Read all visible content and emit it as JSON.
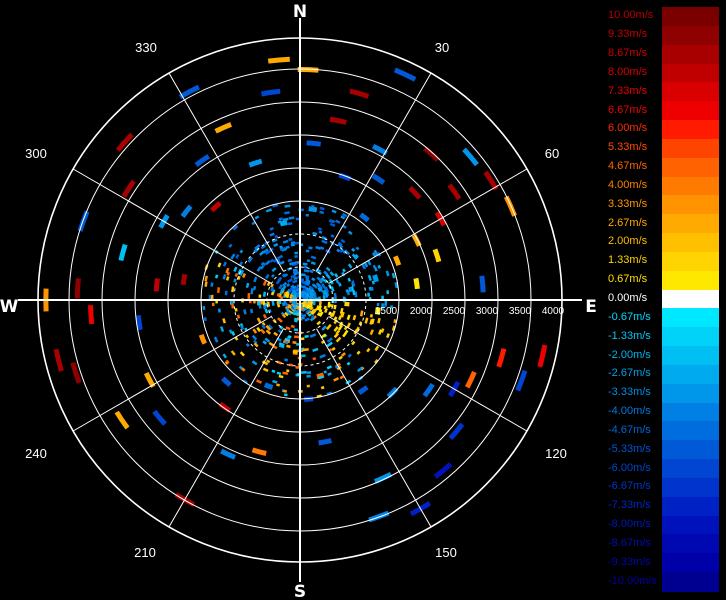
{
  "chart_data": {
    "type": "polar-velocity-display",
    "compass": {
      "north": "N",
      "east": "E",
      "south": "S",
      "west": "W"
    },
    "azimuth_labels": [
      "30",
      "60",
      "120",
      "150",
      "210",
      "240",
      "300",
      "330"
    ],
    "range_labels": [
      "1500",
      "2000",
      "2500",
      "3000",
      "3500",
      "4000"
    ],
    "colorbar": {
      "labels": [
        "10.00m/s",
        "9.33m/s",
        "8.67m/s",
        "8.00m/s",
        "7.33m/s",
        "6.67m/s",
        "6.00m/s",
        "5.33m/s",
        "4.67m/s",
        "4.00m/s",
        "3.33m/s",
        "2.67m/s",
        "2.00m/s",
        "1.33m/s",
        "0.67m/s",
        "0.00m/s",
        "-0.67m/s",
        "-1.33m/s",
        "-2.00m/s",
        "-2.67m/s",
        "-3.33m/s",
        "-4.00m/s",
        "-4.67m/s",
        "-5.33m/s",
        "-6.00m/s",
        "-6.67m/s",
        "-7.33m/s",
        "-8.00m/s",
        "-8.67m/s",
        "-9.33m/s",
        "-10.00m/s"
      ],
      "colors": [
        "#7a0000",
        "#8f0000",
        "#a80000",
        "#c00000",
        "#d80000",
        "#ee0000",
        "#ff1a00",
        "#ff4400",
        "#ff6200",
        "#ff7a00",
        "#ff9400",
        "#ffaa00",
        "#ffc000",
        "#ffd400",
        "#ffe800",
        "#ffffff",
        "#00e8ff",
        "#00d2f8",
        "#00bff2",
        "#00aaee",
        "#0096ea",
        "#0080e4",
        "#006ddf",
        "#005ad8",
        "#0046d2",
        "#0034cc",
        "#0022c4",
        "#0012bc",
        "#0008b2",
        "#0000a8",
        "#000090"
      ],
      "text_colors": [
        "#b40000",
        "#c00000",
        "#cc0000",
        "#d80000",
        "#e40000",
        "#f00000",
        "#ff2a00",
        "#ff4c00",
        "#ff6600",
        "#ff8000",
        "#ff9800",
        "#ffaa00",
        "#ffbe00",
        "#ffd200",
        "#ffe000",
        "#ffffff",
        "#00d8ff",
        "#00c8f5",
        "#00b4ee",
        "#00a0ea",
        "#008ce6",
        "#0078e0",
        "#0066da",
        "#0054d4",
        "#0044ce",
        "#0034c8",
        "#0026c0",
        "#0018b8",
        "#000eb0",
        "#0008a8",
        "#0000a0"
      ]
    },
    "returns": [
      {
        "az": 55,
        "r": 0.72,
        "v": 8.5
      },
      {
        "az": 58,
        "r": 0.86,
        "v": 9.0
      },
      {
        "az": 60,
        "r": 0.62,
        "v": 7.5
      },
      {
        "az": 63,
        "r": 0.5,
        "v": 3.0
      },
      {
        "az": 66,
        "r": 0.88,
        "v": 3.5
      },
      {
        "az": 68,
        "r": 0.4,
        "v": 2.5
      },
      {
        "az": 72,
        "r": 0.55,
        "v": 1.5
      },
      {
        "az": 74,
        "r": 0.3,
        "v": -3.0
      },
      {
        "az": 78,
        "r": 0.2,
        "v": -2.0
      },
      {
        "az": 82,
        "r": 0.45,
        "v": 1.0
      },
      {
        "az": 85,
        "r": 0.7,
        "v": -5.0
      },
      {
        "az": 95,
        "r": 0.18,
        "v": 1.3
      },
      {
        "az": 98,
        "r": 0.3,
        "v": 0.8
      },
      {
        "az": 100,
        "r": 0.12,
        "v": 2.0
      },
      {
        "az": 103,
        "r": 0.95,
        "v": 6.5
      },
      {
        "az": 106,
        "r": 0.8,
        "v": 6.0
      },
      {
        "az": 110,
        "r": 0.9,
        "v": -6.0
      },
      {
        "az": 115,
        "r": 0.72,
        "v": 4.5
      },
      {
        "az": 120,
        "r": 0.68,
        "v": -7.0
      },
      {
        "az": 125,
        "r": 0.6,
        "v": -4.5
      },
      {
        "az": 130,
        "r": 0.78,
        "v": -6.5
      },
      {
        "az": 135,
        "r": 0.5,
        "v": -4.0
      },
      {
        "az": 140,
        "r": 0.85,
        "v": -8.0
      },
      {
        "az": 145,
        "r": 0.42,
        "v": -5.5
      },
      {
        "az": 150,
        "r": 0.92,
        "v": -7.5
      },
      {
        "az": 155,
        "r": 0.75,
        "v": -3.5
      },
      {
        "az": 160,
        "r": 0.88,
        "v": -4.0
      },
      {
        "az": 165,
        "r": 0.3,
        "v": 4.5
      },
      {
        "az": 170,
        "r": 0.55,
        "v": -5.0
      },
      {
        "az": 175,
        "r": 0.38,
        "v": -6.0
      },
      {
        "az": 185,
        "r": 0.2,
        "v": 3.5
      },
      {
        "az": 195,
        "r": 0.6,
        "v": 4.0
      },
      {
        "az": 200,
        "r": 0.35,
        "v": -4.5
      },
      {
        "az": 205,
        "r": 0.65,
        "v": -4.0
      },
      {
        "az": 210,
        "r": 0.88,
        "v": 9.0
      },
      {
        "az": 215,
        "r": 0.5,
        "v": 8.0
      },
      {
        "az": 222,
        "r": 0.42,
        "v": -5.5
      },
      {
        "az": 230,
        "r": 0.7,
        "v": -6.0
      },
      {
        "az": 236,
        "r": 0.82,
        "v": 2.5
      },
      {
        "az": 242,
        "r": 0.65,
        "v": 3.0
      },
      {
        "az": 248,
        "r": 0.4,
        "v": 3.5
      },
      {
        "az": 252,
        "r": 0.9,
        "v": 9.5
      },
      {
        "az": 256,
        "r": 0.95,
        "v": 9.0
      },
      {
        "az": 262,
        "r": 0.62,
        "v": -6.0
      },
      {
        "az": 266,
        "r": 0.8,
        "v": 7.0
      },
      {
        "az": 270,
        "r": 0.97,
        "v": 3.5
      },
      {
        "az": 273,
        "r": 0.85,
        "v": 9.5
      },
      {
        "az": 276,
        "r": 0.55,
        "v": 8.0
      },
      {
        "az": 280,
        "r": 0.45,
        "v": 9.0
      },
      {
        "az": 285,
        "r": 0.7,
        "v": -2.0
      },
      {
        "az": 290,
        "r": 0.88,
        "v": -5.5
      },
      {
        "az": 295,
        "r": 0.25,
        "v": -2.5
      },
      {
        "az": 300,
        "r": 0.6,
        "v": -3.0
      },
      {
        "az": 303,
        "r": 0.78,
        "v": 9.0
      },
      {
        "az": 308,
        "r": 0.55,
        "v": -4.0
      },
      {
        "az": 312,
        "r": 0.9,
        "v": 8.5
      },
      {
        "az": 318,
        "r": 0.48,
        "v": 8.0
      },
      {
        "az": 325,
        "r": 0.65,
        "v": -5.5
      },
      {
        "az": 332,
        "r": 0.9,
        "v": -5.0
      },
      {
        "az": 336,
        "r": 0.72,
        "v": 2.5
      },
      {
        "az": 342,
        "r": 0.55,
        "v": -3.0
      },
      {
        "az": 348,
        "r": 0.3,
        "v": -2.5
      },
      {
        "az": 352,
        "r": 0.8,
        "v": -6.0
      },
      {
        "az": 355,
        "r": 0.92,
        "v": 3.0
      },
      {
        "az": 2,
        "r": 0.88,
        "v": 3.0
      },
      {
        "az": 5,
        "r": 0.6,
        "v": -5.0
      },
      {
        "az": 8,
        "r": 0.35,
        "v": -3.5
      },
      {
        "az": 12,
        "r": 0.7,
        "v": 9.0
      },
      {
        "az": 16,
        "r": 0.82,
        "v": 8.5
      },
      {
        "az": 20,
        "r": 0.5,
        "v": -6.0
      },
      {
        "az": 25,
        "r": 0.95,
        "v": -5.5
      },
      {
        "az": 28,
        "r": 0.65,
        "v": -4.0
      },
      {
        "az": 33,
        "r": 0.55,
        "v": -5.0
      },
      {
        "az": 38,
        "r": 0.4,
        "v": -4.5
      },
      {
        "az": 42,
        "r": 0.75,
        "v": 9.5
      },
      {
        "az": 47,
        "r": 0.6,
        "v": 9.0
      },
      {
        "az": 50,
        "r": 0.85,
        "v": -3.0
      }
    ]
  }
}
